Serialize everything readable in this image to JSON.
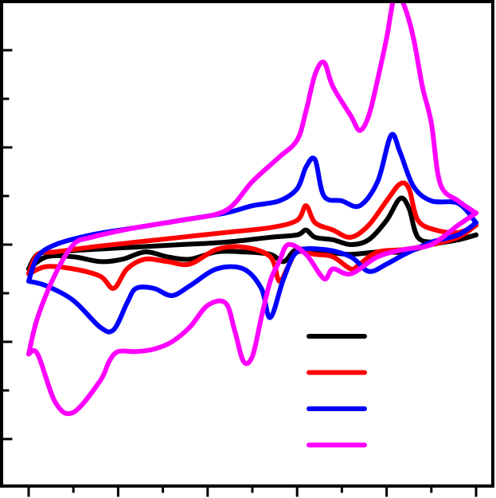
{
  "chart_data": {
    "type": "line",
    "title": "",
    "xlabel": "",
    "ylabel": "",
    "xlim": [
      0,
      100
    ],
    "ylim": [
      -10,
      10
    ],
    "x_major_ticks": [
      0,
      20,
      40,
      60,
      80,
      100
    ],
    "x_minor_ticks": [
      10,
      30,
      50,
      70,
      90
    ],
    "y_major_ticks": [
      -8,
      -4,
      0,
      4,
      8
    ],
    "y_minor_ticks": [
      -10,
      -6,
      -2,
      2,
      6,
      10
    ],
    "tick_labels_visible": false,
    "grid": false,
    "legend": {
      "placement": "bottom-right",
      "entries": [
        {
          "color": "#000000",
          "label": ""
        },
        {
          "color": "#ff0000",
          "label": ""
        },
        {
          "color": "#0000ff",
          "label": ""
        },
        {
          "color": "#ff00ff",
          "label": ""
        }
      ]
    },
    "series": [
      {
        "color": "#000000",
        "forward": [
          [
            0,
            -1
          ],
          [
            2,
            -0.4
          ],
          [
            6,
            -0.3
          ],
          [
            14,
            -0.2
          ],
          [
            24,
            -0.1
          ],
          [
            34,
            0
          ],
          [
            44,
            0.1
          ],
          [
            54,
            0.3
          ],
          [
            60,
            0.4
          ],
          [
            62,
            0.6
          ],
          [
            64,
            0.3
          ],
          [
            68,
            0.2
          ],
          [
            72,
            0
          ],
          [
            76,
            0.2
          ],
          [
            80,
            1
          ],
          [
            83,
            1.9
          ],
          [
            85,
            1.5
          ],
          [
            87,
            0.3
          ],
          [
            91,
            0.1
          ],
          [
            96,
            0.2
          ],
          [
            100,
            0.4
          ]
        ],
        "reverse": [
          [
            100,
            0.4
          ],
          [
            96,
            0.2
          ],
          [
            90,
            0
          ],
          [
            84,
            -0.3
          ],
          [
            78,
            -0.3
          ],
          [
            72,
            -0.4
          ],
          [
            66,
            -0.3
          ],
          [
            60,
            -0.2
          ],
          [
            57,
            -0.7
          ],
          [
            54,
            -0.4
          ],
          [
            48,
            -0.3
          ],
          [
            42,
            -0.3
          ],
          [
            36,
            -0.6
          ],
          [
            31,
            -0.5
          ],
          [
            26,
            -0.3
          ],
          [
            21,
            -0.6
          ],
          [
            16,
            -0.7
          ],
          [
            10,
            -0.5
          ],
          [
            4,
            -0.5
          ],
          [
            0,
            -1
          ]
        ]
      },
      {
        "color": "#ff0000",
        "forward": [
          [
            0,
            -1.2
          ],
          [
            2,
            -0.4
          ],
          [
            6,
            -0.3
          ],
          [
            14,
            -0.1
          ],
          [
            24,
            0.1
          ],
          [
            34,
            0.3
          ],
          [
            44,
            0.5
          ],
          [
            54,
            0.7
          ],
          [
            60,
            1
          ],
          [
            62,
            1.6
          ],
          [
            64,
            0.9
          ],
          [
            68,
            0.6
          ],
          [
            72,
            0.3
          ],
          [
            76,
            0.8
          ],
          [
            80,
            1.8
          ],
          [
            83,
            2.5
          ],
          [
            85,
            2.3
          ],
          [
            87,
            1
          ],
          [
            91,
            0.6
          ],
          [
            96,
            0.5
          ],
          [
            100,
            0.8
          ]
        ],
        "reverse": [
          [
            100,
            0.8
          ],
          [
            96,
            0.3
          ],
          [
            90,
            0
          ],
          [
            84,
            -0.2
          ],
          [
            78,
            -0.3
          ],
          [
            74,
            -0.8
          ],
          [
            72,
            -1
          ],
          [
            68,
            -0.5
          ],
          [
            64,
            -0.4
          ],
          [
            60,
            -0.3
          ],
          [
            58,
            -0.9
          ],
          [
            56,
            -1.5
          ],
          [
            54,
            -0.5
          ],
          [
            48,
            -0.1
          ],
          [
            42,
            -0.2
          ],
          [
            36,
            -0.8
          ],
          [
            31,
            -0.7
          ],
          [
            26,
            -0.6
          ],
          [
            22,
            -1
          ],
          [
            19,
            -1.8
          ],
          [
            16,
            -1.3
          ],
          [
            10,
            -1
          ],
          [
            4,
            -0.9
          ],
          [
            0,
            -1.2
          ]
        ]
      },
      {
        "color": "#0000ff",
        "forward": [
          [
            0,
            -1.5
          ],
          [
            2,
            -0.5
          ],
          [
            6,
            0
          ],
          [
            14,
            0.4
          ],
          [
            24,
            0.7
          ],
          [
            34,
            1
          ],
          [
            44,
            1.3
          ],
          [
            50,
            1.6
          ],
          [
            56,
            1.8
          ],
          [
            60,
            2.3
          ],
          [
            62,
            3.2
          ],
          [
            64,
            3.5
          ],
          [
            66,
            2
          ],
          [
            70,
            1.8
          ],
          [
            74,
            1.6
          ],
          [
            78,
            2.6
          ],
          [
            81,
            4.5
          ],
          [
            83,
            3.8
          ],
          [
            86,
            2.4
          ],
          [
            90,
            1.8
          ],
          [
            96,
            1.7
          ],
          [
            100,
            0.9
          ]
        ],
        "reverse": [
          [
            100,
            0.9
          ],
          [
            96,
            0.4
          ],
          [
            90,
            0.1
          ],
          [
            84,
            -0.4
          ],
          [
            80,
            -0.8
          ],
          [
            76,
            -1.1
          ],
          [
            72,
            -0.5
          ],
          [
            66,
            -0.2
          ],
          [
            60,
            -0.3
          ],
          [
            57,
            -1.4
          ],
          [
            54,
            -3
          ],
          [
            52,
            -1.8
          ],
          [
            48,
            -1
          ],
          [
            42,
            -1
          ],
          [
            36,
            -1.7
          ],
          [
            32,
            -2.1
          ],
          [
            28,
            -1.8
          ],
          [
            24,
            -1.8
          ],
          [
            22,
            -2.4
          ],
          [
            19,
            -3.5
          ],
          [
            16,
            -3.4
          ],
          [
            10,
            -2.3
          ],
          [
            4,
            -1.7
          ],
          [
            0,
            -1.5
          ]
        ]
      },
      {
        "color": "#ff00ff",
        "forward": [
          [
            0,
            -4.5
          ],
          [
            2,
            -3
          ],
          [
            6,
            -1.2
          ],
          [
            10,
            0
          ],
          [
            14,
            0.3
          ],
          [
            24,
            0.7
          ],
          [
            34,
            1
          ],
          [
            44,
            1.4
          ],
          [
            50,
            2.6
          ],
          [
            56,
            3.6
          ],
          [
            60,
            4.3
          ],
          [
            62,
            5.5
          ],
          [
            64,
            7
          ],
          [
            66,
            7.5
          ],
          [
            68,
            6.5
          ],
          [
            72,
            5.3
          ],
          [
            74,
            4.7
          ],
          [
            76,
            5.3
          ],
          [
            78,
            6.8
          ],
          [
            80,
            8.5
          ],
          [
            82,
            10.4
          ],
          [
            84,
            9.8
          ],
          [
            86,
            8.5
          ],
          [
            88,
            6.5
          ],
          [
            90,
            5
          ],
          [
            92,
            2.5
          ],
          [
            96,
            1.8
          ],
          [
            100,
            1.3
          ]
        ],
        "reverse": [
          [
            100,
            1.3
          ],
          [
            96,
            0.8
          ],
          [
            90,
            0
          ],
          [
            84,
            -0.2
          ],
          [
            78,
            -0.5
          ],
          [
            72,
            -1.2
          ],
          [
            68,
            -1
          ],
          [
            66,
            -1.4
          ],
          [
            62,
            -0.4
          ],
          [
            58,
            0
          ],
          [
            56,
            -0.7
          ],
          [
            54,
            -1.5
          ],
          [
            52,
            -3
          ],
          [
            50,
            -4.6
          ],
          [
            48,
            -4.8
          ],
          [
            46,
            -3.5
          ],
          [
            44,
            -2.4
          ],
          [
            40,
            -2.5
          ],
          [
            36,
            -3.4
          ],
          [
            32,
            -4
          ],
          [
            28,
            -4.3
          ],
          [
            24,
            -4.4
          ],
          [
            20,
            -4.4
          ],
          [
            18,
            -4.8
          ],
          [
            16,
            -5.6
          ],
          [
            10,
            -6.9
          ],
          [
            6,
            -6.5
          ],
          [
            2,
            -4.5
          ],
          [
            0,
            -4.5
          ]
        ]
      }
    ]
  }
}
